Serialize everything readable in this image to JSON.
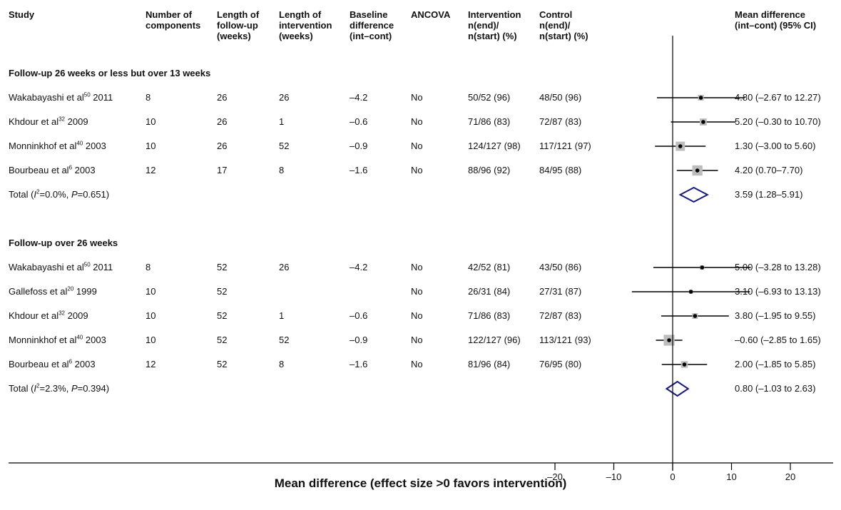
{
  "headers": {
    "study": "Study",
    "components": "Number of\ncomponents",
    "followup": "Length of\nfollow-up\n(weeks)",
    "intervention_len": "Length of\nintervention\n(weeks)",
    "baseline": "Baseline\ndifference\n(int–cont)",
    "ancova": "ANCOVA",
    "intervention": "Intervention\nn(end)/\nn(start) (%)",
    "control": "Control\nn(end)/\nn(start) (%)",
    "md": "Mean difference\n(int–cont) (95% CI)"
  },
  "sections": [
    {
      "title": "Follow-up 26 weeks or less but over 13 weeks",
      "rows": [
        {
          "author": "Wakabayashi et al",
          "ref": "50",
          "year": "2011",
          "components": "8",
          "followup": "26",
          "intervention_len": "26",
          "baseline": "–4.2",
          "ancova": "No",
          "int": "50/52 (96)",
          "ctl": "48/50 (96)",
          "md": 4.8,
          "lo": -2.67,
          "hi": 12.27,
          "weight": 1.0,
          "ci": "4.80 (–2.67 to 12.27)"
        },
        {
          "author": "Khdour et al",
          "ref": "32",
          "year": "2009",
          "components": "10",
          "followup": "26",
          "intervention_len": "1",
          "baseline": "–0.6",
          "ancova": "No",
          "int": "71/86 (83)",
          "ctl": "72/87 (83)",
          "md": 5.2,
          "lo": -0.3,
          "hi": 10.7,
          "weight": 1.5,
          "ci": "5.20 (–0.30 to 10.70)"
        },
        {
          "author": "Monninkhof et al",
          "ref": "40",
          "year": "2003",
          "components": "10",
          "followup": "26",
          "intervention_len": "52",
          "baseline": "–0.9",
          "ancova": "No",
          "int": "124/127 (98)",
          "ctl": "117/121 (97)",
          "md": 1.3,
          "lo": -3.0,
          "hi": 5.6,
          "weight": 2.6,
          "ci": "1.30 (–3.00 to 5.60)"
        },
        {
          "author": "Bourbeau et al",
          "ref": "6",
          "year": "2003",
          "components": "12",
          "followup": "17",
          "intervention_len": "8",
          "baseline": "–1.6",
          "ancova": "No",
          "int": "88/96 (92)",
          "ctl": "84/95 (88)",
          "md": 4.2,
          "lo": 0.7,
          "hi": 7.7,
          "weight": 3.2,
          "ci": "4.20 (0.70–7.70)"
        }
      ],
      "total": {
        "label_prefix": "Total (",
        "i2_sym": "I",
        "i2_val": "=0.0%, ",
        "p_sym": "P",
        "p_val": "=0.651)",
        "md": 3.59,
        "lo": 1.28,
        "hi": 5.91,
        "ci": "3.59 (1.28–5.91)"
      }
    },
    {
      "title": "Follow-up over 26 weeks",
      "rows": [
        {
          "author": "Wakabayashi et al",
          "ref": "50",
          "year": "2011",
          "components": "8",
          "followup": "52",
          "intervention_len": "26",
          "baseline": "–4.2",
          "ancova": "No",
          "int": "42/52 (81)",
          "ctl": "43/50 (86)",
          "md": 5.0,
          "lo": -3.28,
          "hi": 13.28,
          "weight": 0.6,
          "ci": "5.00 (–3.28 to 13.28)"
        },
        {
          "author": "Gallefoss et al",
          "ref": "20",
          "year": "1999",
          "components": "10",
          "followup": "52",
          "intervention_len": "",
          "baseline": "",
          "ancova": "No",
          "int": "26/31 (84)",
          "ctl": "27/31 (87)",
          "md": 3.1,
          "lo": -6.93,
          "hi": 13.13,
          "weight": 0.5,
          "ci": "3.10 (–6.93 to 13.13)"
        },
        {
          "author": "Khdour et al",
          "ref": "32",
          "year": "2009",
          "components": "10",
          "followup": "52",
          "intervention_len": "1",
          "baseline": "–0.6",
          "ancova": "No",
          "int": "71/86 (83)",
          "ctl": "72/87 (83)",
          "md": 3.8,
          "lo": -1.95,
          "hi": 9.55,
          "weight": 1.0,
          "ci": "3.80 (–1.95 to 9.55)"
        },
        {
          "author": "Monninkhof et al",
          "ref": "40",
          "year": "2003",
          "components": "10",
          "followup": "52",
          "intervention_len": "52",
          "baseline": "–0.9",
          "ancova": "No",
          "int": "122/127 (96)",
          "ctl": "113/121 (93)",
          "md": -0.6,
          "lo": -2.85,
          "hi": 1.65,
          "weight": 3.6,
          "ci": "–0.60 (–2.85 to 1.65)"
        },
        {
          "author": "Bourbeau et al",
          "ref": "6",
          "year": "2003",
          "components": "12",
          "followup": "52",
          "intervention_len": "8",
          "baseline": "–1.6",
          "ancova": "No",
          "int": "81/96 (84)",
          "ctl": "76/95 (80)",
          "md": 2.0,
          "lo": -1.85,
          "hi": 5.85,
          "weight": 1.4,
          "ci": "2.00 (–1.85 to 5.85)"
        }
      ],
      "total": {
        "label_prefix": "Total (",
        "i2_sym": "I",
        "i2_val": "=2.3%, ",
        "p_sym": "P",
        "p_val": "=0.394)",
        "md": 0.8,
        "lo": -1.03,
        "hi": 2.63,
        "ci": "0.80 (–1.03 to 2.63)"
      }
    }
  ],
  "colors": {
    "diamond": "#1a1a7a",
    "box": "#bdbdbd",
    "line": "#000000"
  },
  "chart_data": {
    "type": "forest",
    "xlabel": "Mean difference (effect size >0 favors intervention)",
    "xticks": [
      -20,
      -10,
      0,
      10,
      20
    ],
    "xtick_labels": [
      "–20",
      "–10",
      "0",
      "10",
      "20"
    ],
    "xlim": [
      -20,
      20
    ],
    "reference_line": 0
  }
}
